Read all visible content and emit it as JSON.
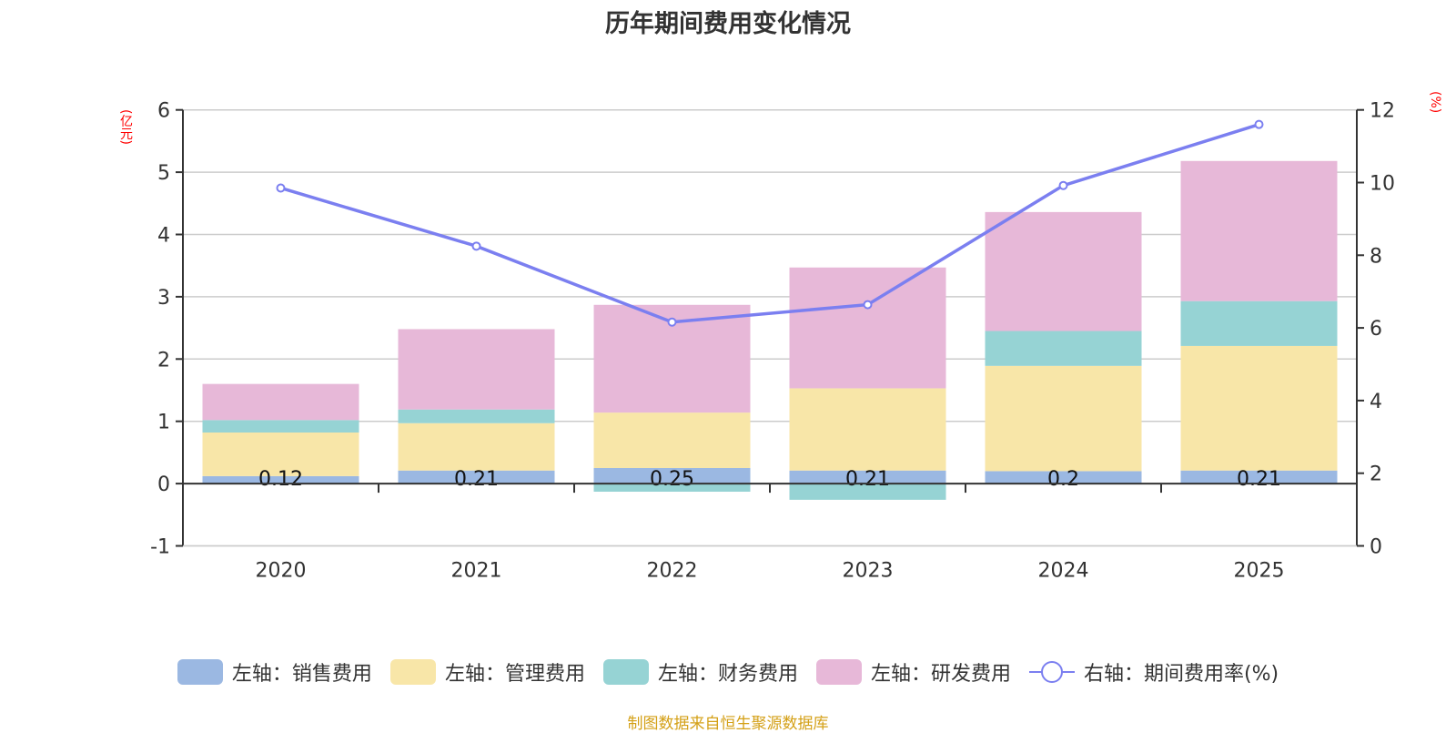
{
  "title": "历年期间费用变化情况",
  "footer": "制图数据来自恒生聚源数据库",
  "chart_data": {
    "type": "bar",
    "title": "历年期间费用变化情况",
    "categories": [
      "2020",
      "2021",
      "2022",
      "2023",
      "2024",
      "2025"
    ],
    "left_axis": {
      "unit": "(亿元)",
      "ylim": [
        -1,
        6
      ],
      "ticks": [
        "-1",
        "0",
        "1",
        "2",
        "3",
        "4",
        "5",
        "6"
      ],
      "grid": true
    },
    "right_axis": {
      "unit": "(%)",
      "ylim": [
        0,
        12
      ],
      "ticks": [
        "0",
        "2",
        "4",
        "6",
        "8",
        "10",
        "12"
      ]
    },
    "series": [
      {
        "name": "左轴：销售费用",
        "type": "bar",
        "stack": true,
        "axis": "left",
        "color": "#9bb8e2",
        "values": [
          0.12,
          0.21,
          0.25,
          0.21,
          0.2,
          0.21
        ],
        "labels": [
          "0.12",
          "0.21",
          "0.25",
          "0.21",
          "0.2",
          "0.21"
        ]
      },
      {
        "name": "左轴：管理费用",
        "type": "bar",
        "stack": true,
        "axis": "left",
        "color": "#f8e6a8",
        "values": [
          0.7,
          0.76,
          0.89,
          1.32,
          1.69,
          2.0
        ]
      },
      {
        "name": "左轴：财务费用",
        "type": "bar",
        "stack": true,
        "axis": "left",
        "color": "#96d3d4",
        "values": [
          0.2,
          0.22,
          -0.13,
          -0.26,
          0.56,
          0.72
        ]
      },
      {
        "name": "左轴：研发费用",
        "type": "bar",
        "stack": true,
        "axis": "left",
        "color": "#e7b8d8",
        "values": [
          0.58,
          1.29,
          1.73,
          1.94,
          1.91,
          2.25
        ]
      },
      {
        "name": "右轴：期间费用率(%)",
        "type": "line",
        "axis": "right",
        "color": "#7b7ff0",
        "values": [
          9.85,
          8.25,
          6.16,
          6.64,
          9.92,
          11.6
        ]
      }
    ],
    "legend_position": "bottom"
  }
}
